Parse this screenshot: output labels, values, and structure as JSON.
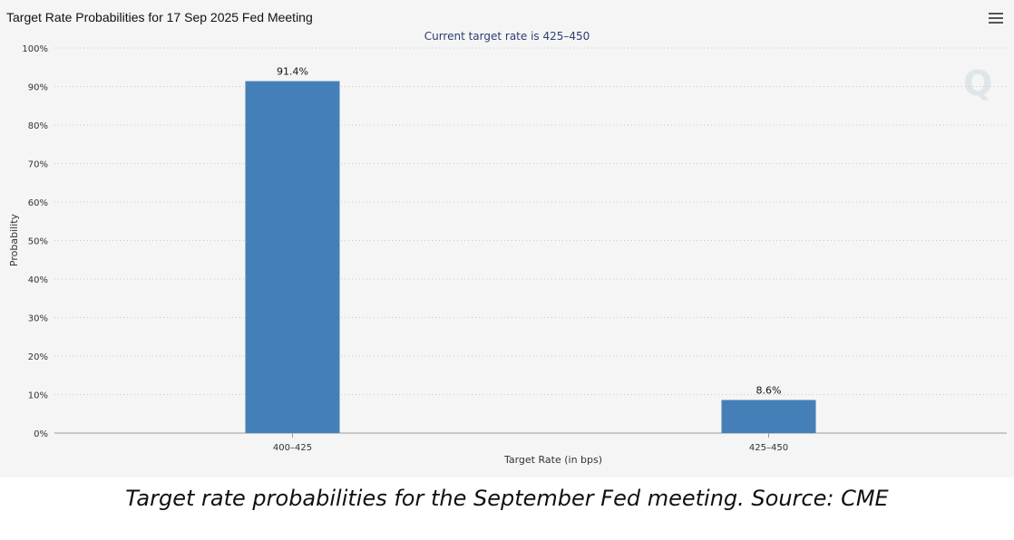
{
  "chart_data": {
    "type": "bar",
    "title": "Target Rate Probabilities for 17 Sep 2025 Fed Meeting",
    "subtitle": "Current target rate is 425–450",
    "xlabel": "Target Rate (in bps)",
    "ylabel": "Probability",
    "categories": [
      "400–425",
      "425–450"
    ],
    "values": [
      91.4,
      8.6
    ],
    "data_labels": [
      "91.4%",
      "8.6%"
    ],
    "ylim": [
      0,
      100
    ],
    "yticks": [
      "0%",
      "10%",
      "20%",
      "30%",
      "40%",
      "50%",
      "60%",
      "70%",
      "80%",
      "90%",
      "100%"
    ],
    "grid": true,
    "bar_color": "#4480b7"
  },
  "watermark": "Q",
  "caption": "Target rate probabilities for the September Fed meeting. Source: CME"
}
